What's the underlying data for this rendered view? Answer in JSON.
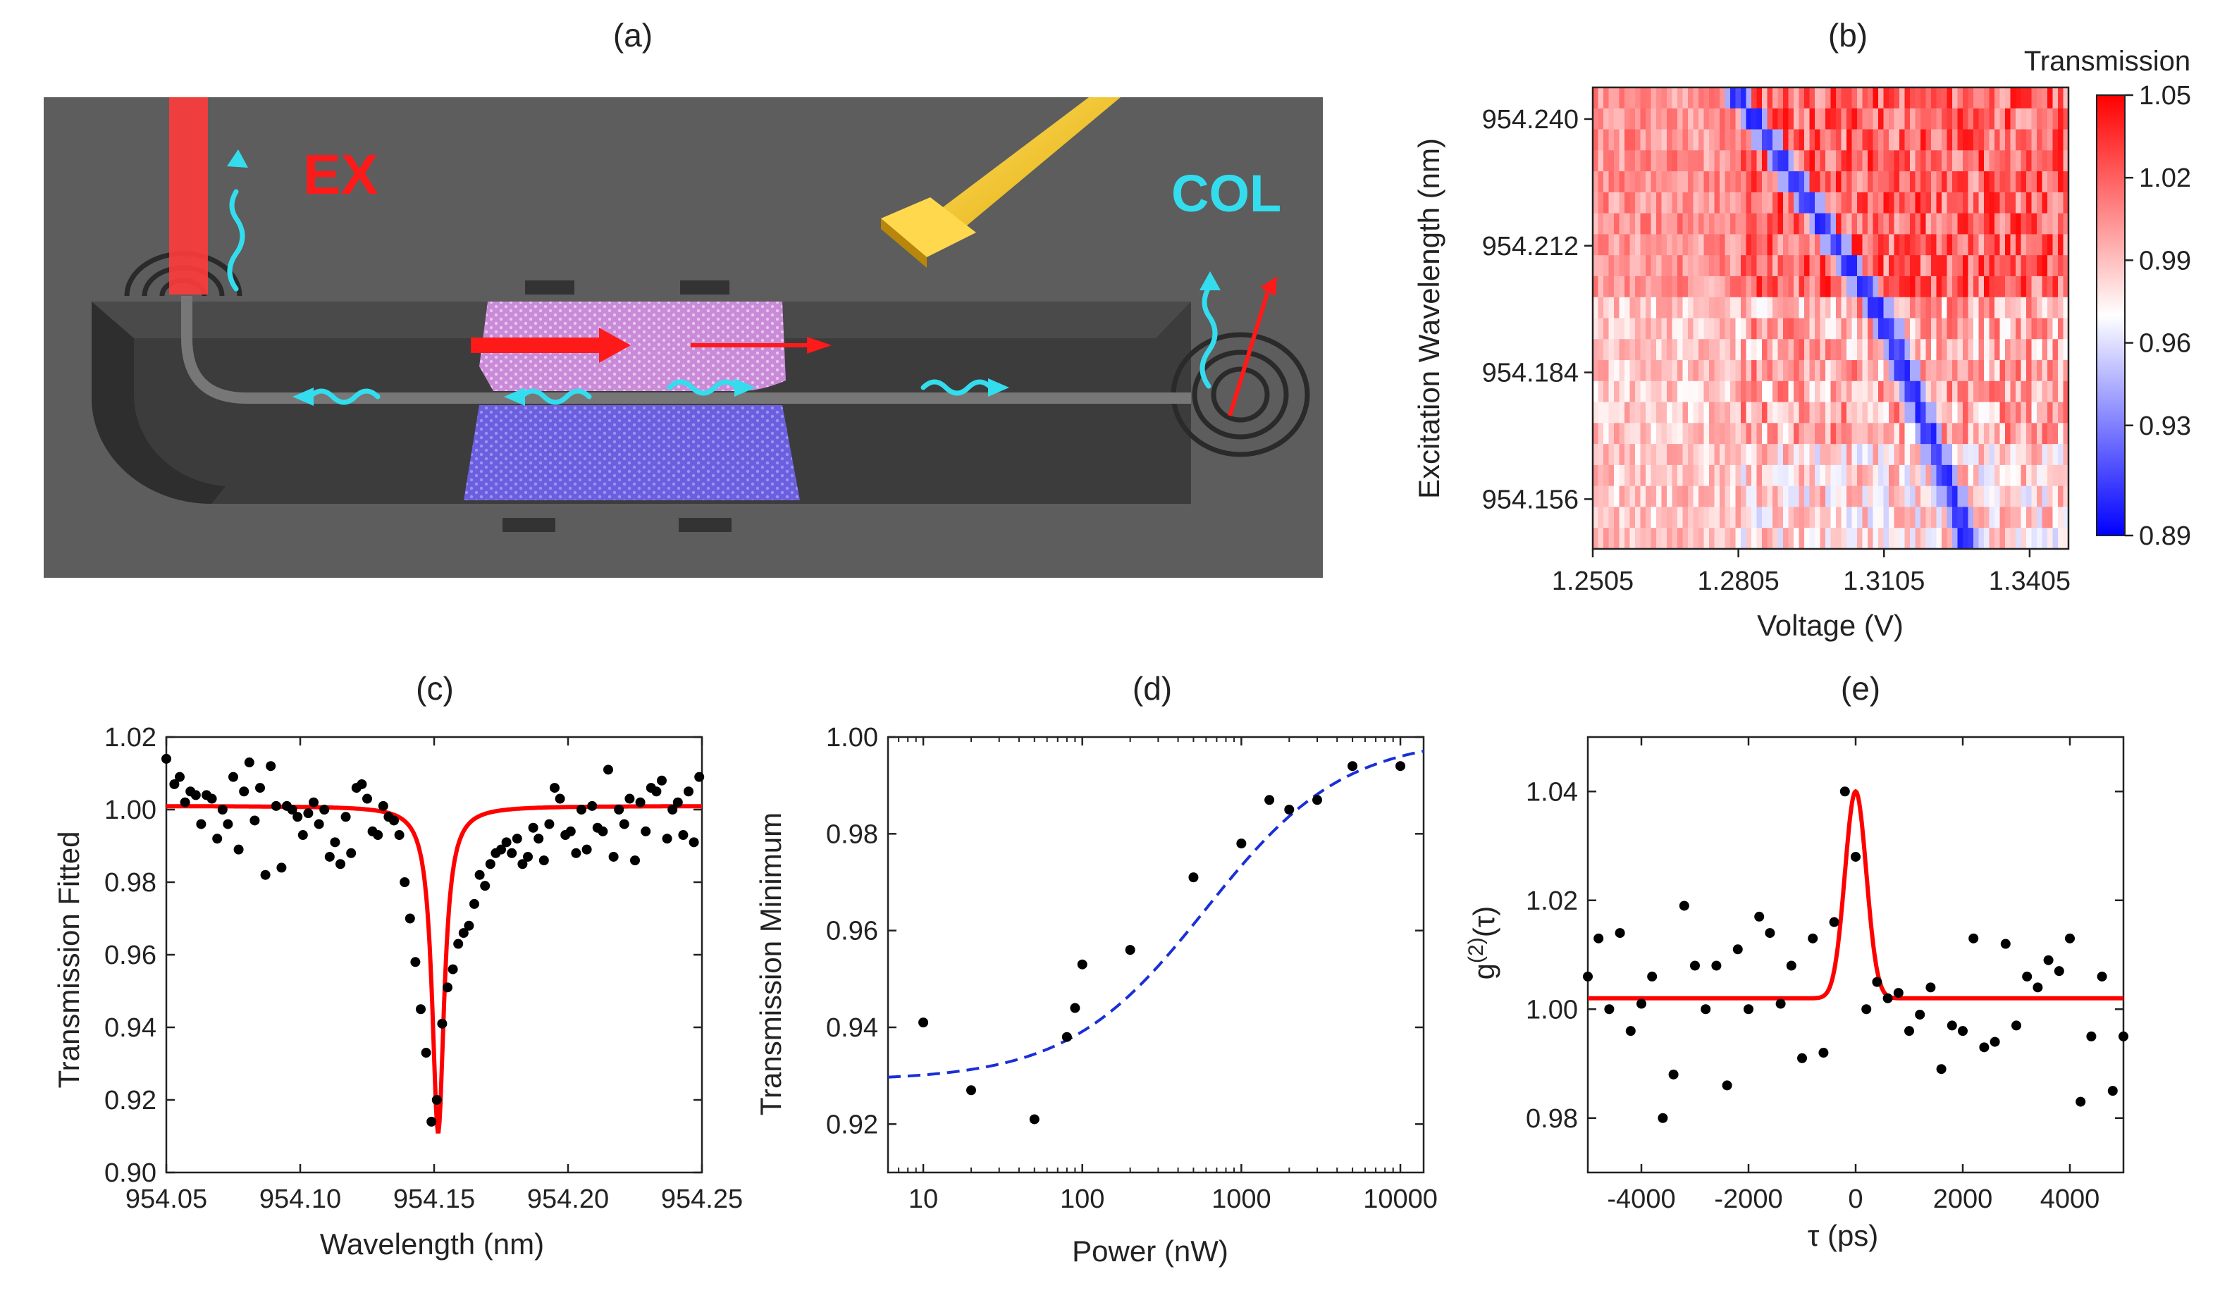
{
  "panel_labels": {
    "a": "(a)",
    "b": "(b)",
    "c": "(c)",
    "d": "(d)",
    "e": "(e)"
  },
  "schematic": {
    "ex_label": "EX",
    "col_label": "COL",
    "ex_color": "#ff1a1a",
    "col_color": "#33ddee"
  },
  "chart_data": [
    {
      "id": "b",
      "type": "heatmap",
      "title": "",
      "xlabel": "Voltage (V)",
      "ylabel": "Excitation Wavelength (nm)",
      "x_ticks": [
        "1.2505",
        "1.2805",
        "1.3105",
        "1.3405"
      ],
      "x_tick_values": [
        1.2505,
        1.2805,
        1.3105,
        1.3405
      ],
      "y_ticks": [
        "954.240",
        "954.212",
        "954.184",
        "954.156"
      ],
      "y_tick_values": [
        954.24,
        954.212,
        954.184,
        954.156
      ],
      "xlim": [
        1.2505,
        1.3485
      ],
      "ylim": [
        954.145,
        954.247
      ],
      "colorbar": {
        "title": "Transmission",
        "ticks": [
          "1.05",
          "1.02",
          "0.99",
          "0.96",
          "0.93",
          "0.89"
        ],
        "tick_values": [
          1.05,
          1.02,
          0.99,
          0.96,
          0.93,
          0.89
        ],
        "range": [
          0.89,
          1.05
        ],
        "low_color": "#0000ff",
        "mid_color": "#ffffff",
        "high_color": "#ff0000"
      },
      "dip_trace": {
        "voltage": [
          1.2805,
          1.3105,
          1.3275
        ],
        "wavelength": [
          954.245,
          954.196,
          954.148
        ]
      }
    },
    {
      "id": "c",
      "type": "scatter",
      "xlabel": "Wavelength (nm)",
      "ylabel": "Transmission Fitted",
      "xlim": [
        954.05,
        954.25
      ],
      "ylim": [
        0.9,
        1.02
      ],
      "x_ticks": [
        "954.05",
        "954.10",
        "954.15",
        "954.20",
        "954.25"
      ],
      "x_tick_values": [
        954.05,
        954.1,
        954.15,
        954.2,
        954.25
      ],
      "y_ticks": [
        "0.90",
        "0.92",
        "0.94",
        "0.96",
        "0.98",
        "1.00",
        "1.02"
      ],
      "y_tick_values": [
        0.9,
        0.92,
        0.94,
        0.96,
        0.98,
        1.0,
        1.02
      ],
      "series": [
        {
          "name": "data",
          "x": [
            954.05,
            954.053,
            954.055,
            954.057,
            954.059,
            954.061,
            954.063,
            954.065,
            954.067,
            954.069,
            954.071,
            954.073,
            954.075,
            954.077,
            954.079,
            954.081,
            954.083,
            954.085,
            954.087,
            954.089,
            954.091,
            954.093,
            954.095,
            954.097,
            954.099,
            954.101,
            954.103,
            954.105,
            954.107,
            954.109,
            954.111,
            954.113,
            954.115,
            954.117,
            954.119,
            954.121,
            954.123,
            954.125,
            954.127,
            954.129,
            954.131,
            954.133,
            954.135,
            954.137,
            954.139,
            954.141,
            954.143,
            954.145,
            954.147,
            954.149,
            954.151,
            954.153,
            954.155,
            954.157,
            954.159,
            954.161,
            954.163,
            954.165,
            954.167,
            954.169,
            954.171,
            954.173,
            954.175,
            954.177,
            954.179,
            954.181,
            954.183,
            954.185,
            954.187,
            954.189,
            954.191,
            954.193,
            954.195,
            954.197,
            954.199,
            954.201,
            954.203,
            954.205,
            954.207,
            954.209,
            954.211,
            954.213,
            954.215,
            954.217,
            954.219,
            954.221,
            954.223,
            954.225,
            954.227,
            954.229,
            954.231,
            954.233,
            954.235,
            954.237,
            954.239,
            954.241,
            954.243,
            954.245,
            954.247,
            954.249
          ],
          "y": [
            1.014,
            1.007,
            1.009,
            1.002,
            1.005,
            1.004,
            0.996,
            1.004,
            1.003,
            0.992,
            1.0,
            0.996,
            1.009,
            0.989,
            1.005,
            1.013,
            0.997,
            1.006,
            0.982,
            1.012,
            1.001,
            0.984,
            1.001,
            1.0,
            0.998,
            0.993,
            0.999,
            1.002,
            0.996,
            1.0,
            0.987,
            0.991,
            0.985,
            0.998,
            0.988,
            1.006,
            1.007,
            1.003,
            0.994,
            0.993,
            1.001,
            0.998,
            0.997,
            0.993,
            0.98,
            0.97,
            0.958,
            0.945,
            0.933,
            0.914,
            0.92,
            0.941,
            0.951,
            0.956,
            0.963,
            0.966,
            0.968,
            0.974,
            0.982,
            0.979,
            0.985,
            0.988,
            0.989,
            0.991,
            0.988,
            0.992,
            0.985,
            0.987,
            0.995,
            0.992,
            0.986,
            0.996,
            1.006,
            1.003,
            0.993,
            0.994,
            0.988,
            1.0,
            0.989,
            1.001,
            0.995,
            0.994,
            1.011,
            0.987,
            1.0,
            0.996,
            1.003,
            0.986,
            1.002,
            0.994,
            1.006,
            1.005,
            1.008,
            0.992,
            1.0,
            1.002,
            0.993,
            1.005,
            0.991,
            1.009
          ]
        },
        {
          "name": "fit",
          "kind": "lorentzian",
          "center": 954.1515,
          "fwhm": 0.0055,
          "baseline": 1.001,
          "min": 0.911,
          "color": "#ff0000"
        }
      ]
    },
    {
      "id": "d",
      "type": "scatter",
      "xscale": "log",
      "xlabel": "Power (nW)",
      "ylabel": "Transmission Minimum",
      "xlim": [
        6,
        14000
      ],
      "ylim": [
        0.91,
        1.0
      ],
      "x_ticks": [
        "10",
        "100",
        "1000",
        "10000"
      ],
      "x_tick_values": [
        10,
        100,
        1000,
        10000
      ],
      "y_ticks": [
        "0.92",
        "0.94",
        "0.96",
        "0.98",
        "1.00"
      ],
      "y_tick_values": [
        0.92,
        0.94,
        0.96,
        0.98,
        1.0
      ],
      "series": [
        {
          "name": "data",
          "x": [
            10,
            20,
            50,
            80,
            90,
            100,
            200,
            500,
            1000,
            1500,
            2000,
            3000,
            5000,
            10000
          ],
          "y": [
            0.941,
            0.927,
            0.921,
            0.938,
            0.944,
            0.953,
            0.956,
            0.971,
            0.978,
            0.987,
            0.985,
            0.987,
            0.994,
            0.994
          ]
        },
        {
          "name": "fit",
          "kind": "saturation",
          "Tmin": 0.929,
          "Psat": 600,
          "color": "#1a2fd6",
          "style": "dashed"
        }
      ]
    },
    {
      "id": "e",
      "type": "scatter",
      "xlabel": "τ (ps)",
      "ylabel": "g(2)(τ)",
      "ylabel_main": "g",
      "ylabel_sup": "(2)",
      "ylabel_tail": "(τ)",
      "xlim": [
        -5000,
        5000
      ],
      "ylim": [
        0.97,
        1.05
      ],
      "x_ticks": [
        "-4000",
        "-2000",
        "0",
        "2000",
        "4000"
      ],
      "x_tick_values": [
        -4000,
        -2000,
        0,
        2000,
        4000
      ],
      "y_ticks": [
        "0.98",
        "1.00",
        "1.02",
        "1.04"
      ],
      "y_tick_values": [
        0.98,
        1.0,
        1.02,
        1.04
      ],
      "series": [
        {
          "name": "data",
          "x": [
            -5000,
            -4800,
            -4600,
            -4400,
            -4200,
            -4000,
            -3800,
            -3600,
            -3400,
            -3200,
            -3000,
            -2800,
            -2600,
            -2400,
            -2200,
            -2000,
            -1800,
            -1600,
            -1400,
            -1200,
            -1000,
            -800,
            -600,
            -400,
            -200,
            0,
            200,
            400,
            600,
            800,
            1000,
            1200,
            1400,
            1600,
            1800,
            2000,
            2200,
            2400,
            2600,
            2800,
            3000,
            3200,
            3400,
            3600,
            3800,
            4000,
            4200,
            4400,
            4600,
            4800,
            5000
          ],
          "y": [
            1.006,
            1.013,
            1.0,
            1.014,
            0.996,
            1.001,
            1.006,
            0.98,
            0.988,
            1.019,
            1.008,
            1.0,
            1.008,
            0.986,
            1.011,
            1.0,
            1.017,
            1.014,
            1.001,
            1.008,
            0.991,
            1.013,
            0.992,
            1.016,
            1.04,
            1.028,
            1.0,
            1.005,
            1.002,
            1.003,
            0.996,
            0.999,
            1.004,
            0.989,
            0.997,
            0.996,
            1.013,
            0.993,
            0.994,
            1.012,
            0.997,
            1.006,
            1.004,
            1.009,
            1.007,
            1.013,
            0.983,
            0.995,
            1.006,
            0.985,
            0.995
          ]
        },
        {
          "name": "fit",
          "kind": "gaussian",
          "center": 0,
          "sigma": 200,
          "baseline": 1.002,
          "peak": 1.04,
          "color": "#ff0000"
        }
      ]
    }
  ]
}
